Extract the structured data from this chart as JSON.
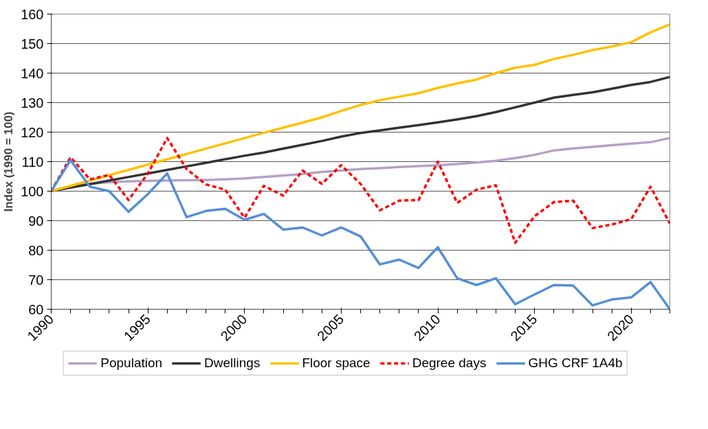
{
  "chart_data": {
    "type": "line",
    "ylabel": "Index (1990 = 100)",
    "x": [
      1990,
      1991,
      1992,
      1993,
      1994,
      1995,
      1996,
      1997,
      1998,
      1999,
      2000,
      2001,
      2002,
      2003,
      2004,
      2005,
      2006,
      2007,
      2008,
      2009,
      2010,
      2011,
      2012,
      2013,
      2014,
      2015,
      2016,
      2017,
      2018,
      2019,
      2020,
      2021,
      2022
    ],
    "xlim": [
      1990,
      2022
    ],
    "xticks": [
      1990,
      1995,
      2000,
      2005,
      2010,
      2015,
      2020
    ],
    "ylim": [
      60,
      160
    ],
    "yticks": [
      60,
      70,
      80,
      90,
      100,
      110,
      120,
      130,
      140,
      150,
      160
    ],
    "grid": "y",
    "legend": "bottom",
    "marker": "none",
    "series": [
      {
        "name": "Population",
        "color": "#b3a2c7",
        "values": [
          100,
          101.5,
          102.5,
          103,
          103.3,
          103.5,
          103.6,
          103.7,
          103.8,
          104,
          104.3,
          104.8,
          105.3,
          105.8,
          106.5,
          107,
          107.5,
          107.8,
          108.2,
          108.5,
          108.8,
          109.2,
          109.7,
          110.3,
          111.2,
          112.3,
          113.8,
          114.5,
          115,
          115.6,
          116.1,
          116.6,
          118
        ]
      },
      {
        "name": "Dwellings",
        "color": "#333333",
        "values": [
          100,
          101.2,
          102.4,
          103.6,
          104.8,
          106,
          107.2,
          108.4,
          109.6,
          110.8,
          112,
          113.1,
          114.4,
          115.7,
          117,
          118.5,
          119.7,
          120.6,
          121.5,
          122.4,
          123.3,
          124.3,
          125.4,
          126.8,
          128.4,
          130,
          131.7,
          132.6,
          133.5,
          134.7,
          136,
          137,
          138.7
        ]
      },
      {
        "name": "Floor space",
        "color": "#ffc000",
        "values": [
          100,
          101.8,
          103.6,
          105.4,
          107.2,
          109,
          110.8,
          112.6,
          114.4,
          116.2,
          118,
          119.8,
          121.5,
          123.2,
          125,
          127.2,
          129.2,
          130.8,
          132,
          133.2,
          135,
          136.5,
          137.8,
          140,
          141.8,
          142.8,
          144.8,
          146.2,
          147.8,
          149,
          150.5,
          153.8,
          156.5
        ]
      },
      {
        "name": "Degree days",
        "color": "#ff0000",
        "line_style": "dashed",
        "values": [
          100,
          111.5,
          104,
          105.5,
          97,
          106,
          118,
          107.5,
          102.3,
          100.5,
          91,
          101.8,
          98.5,
          107,
          102.5,
          108.8,
          102.5,
          93.5,
          96.8,
          97,
          110,
          96,
          100.5,
          102,
          82.5,
          91.5,
          96.3,
          96.8,
          87.5,
          88.7,
          90.5,
          101.5,
          89
        ]
      },
      {
        "name": "GHG CRF 1A4b",
        "color": "#558ed5",
        "values": [
          100,
          110.5,
          101.5,
          100,
          93,
          99,
          106,
          91.2,
          93.3,
          94,
          90.3,
          92.3,
          87,
          87.7,
          85,
          87.7,
          84.7,
          75.2,
          76.8,
          74,
          81,
          70.5,
          68.2,
          70.5,
          61.7,
          65,
          68.2,
          68,
          61.3,
          63.3,
          64,
          69.2,
          60
        ]
      }
    ]
  }
}
